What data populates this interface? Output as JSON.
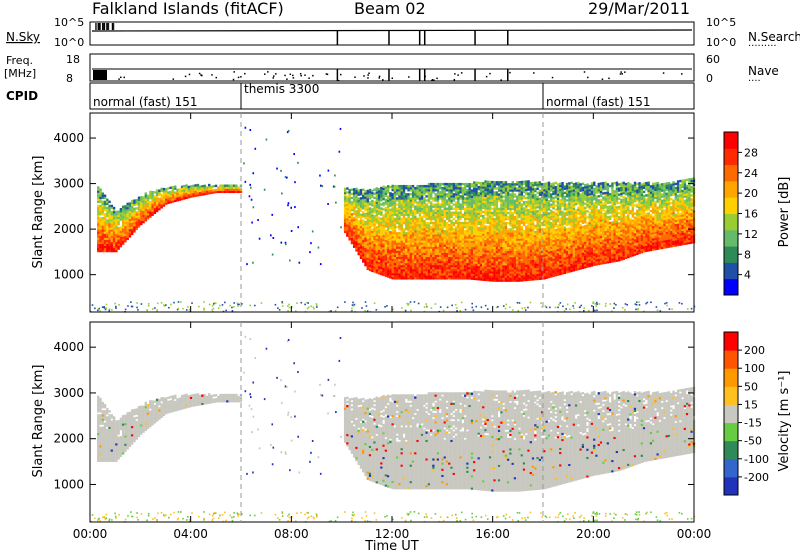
{
  "header": {
    "site": "Falkland Islands (fitACF)",
    "beam": "Beam 02",
    "date": "29/Mar/2011"
  },
  "top_panels": {
    "nsky_label": "N.Sky",
    "nsearch_label": "N.Search",
    "freq_label_line1": "Freq.",
    "freq_label_line2": "[MHz]",
    "nave_label": "Nave",
    "cpid_label": "CPID",
    "left_ticks_noise": [
      "10^5",
      "10^0"
    ],
    "right_ticks_noise": [
      "10^5",
      "10^0"
    ],
    "left_ticks_freq": [
      "18",
      "8"
    ],
    "right_ticks_nave": [
      "60",
      "0"
    ],
    "cpid_segments": [
      {
        "label": "normal (fast) 151",
        "start_hour": 0
      },
      {
        "label": "themis 3300",
        "start_hour": 6
      },
      {
        "label": "normal (fast) 151",
        "start_hour": 18
      }
    ],
    "noise_drop_hours": [
      9.83,
      11.88,
      13.1,
      13.3,
      15.3,
      16.6
    ]
  },
  "power_panel": {
    "ylabel": "Slant Range [km]",
    "yticks": [
      1000,
      2000,
      3000,
      4000
    ],
    "colorbar_label": "Power [dB]",
    "colorbar_ticks": [
      "4",
      "8",
      "12",
      "16",
      "20",
      "24",
      "28"
    ],
    "colorbar_colors": [
      "#0000ff",
      "#1f4fa6",
      "#2e8b57",
      "#66bb6a",
      "#9acd32",
      "#ffd000",
      "#ffa500",
      "#ff6a00",
      "#ff2a00",
      "#ff0000"
    ]
  },
  "velocity_panel": {
    "ylabel": "Slant Range [km]",
    "yticks": [
      1000,
      2000,
      3000,
      4000
    ],
    "colorbar_label": "Velocity [m s⁻¹]",
    "colorbar_ticks": [
      "200",
      "100",
      "50",
      "15",
      "-15",
      "-50",
      "-100",
      "-200"
    ],
    "colorbar_colors": [
      "#2233bb",
      "#3366cc",
      "#2e8b57",
      "#66cc44",
      "#c8c8c0",
      "#ffc020",
      "#ff9900",
      "#ff5500",
      "#ff0000"
    ]
  },
  "xaxis": {
    "label": "Time UT",
    "ticks": [
      "00:00",
      "04:00",
      "08:00",
      "12:00",
      "16:00",
      "20:00",
      "00:00"
    ]
  },
  "chart_data": [
    {
      "type": "heatmap",
      "title": "Power",
      "xlabel": "Time UT",
      "ylabel": "Slant Range [km]",
      "xlim": [
        0,
        24
      ],
      "ylim": [
        180,
        4550
      ],
      "colorbar": {
        "label": "Power [dB]",
        "range": [
          0,
          30
        ]
      },
      "echo_region": {
        "hours": [
          0.2,
          1.0,
          2.0,
          3.0,
          4.0,
          5.0,
          6.0,
          10.0,
          11.0,
          12.0,
          13.0,
          14.0,
          15.0,
          16.0,
          17.0,
          18.0,
          19.0,
          20.0,
          21.0,
          22.0,
          23.0,
          24.0
        ],
        "min_range_km": [
          1500,
          1500,
          2100,
          2550,
          2700,
          2800,
          2800,
          2000,
          1100,
          900,
          900,
          900,
          900,
          850,
          850,
          900,
          1050,
          1200,
          1300,
          1500,
          1600,
          1700
        ],
        "max_range_km": [
          3000,
          2400,
          2750,
          2900,
          2950,
          2950,
          2950,
          2900,
          2850,
          2950,
          2950,
          3000,
          3000,
          3050,
          3050,
          3000,
          3000,
          3000,
          3000,
          3000,
          3000,
          3100
        ]
      }
    },
    {
      "type": "heatmap",
      "title": "Velocity",
      "xlabel": "Time UT",
      "ylabel": "Slant Range [km]",
      "xlim": [
        0,
        24
      ],
      "ylim": [
        180,
        4550
      ],
      "colorbar": {
        "label": "Velocity [m s⁻¹]",
        "range": [
          -250,
          250
        ]
      },
      "dominant_value_ms": 0
    }
  ]
}
